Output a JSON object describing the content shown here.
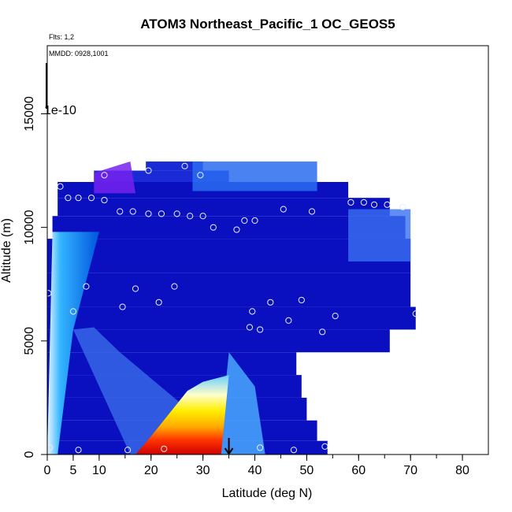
{
  "chart_data": {
    "type": "heatmap",
    "title": "ATOM3 Northeast_Pacific_1 OC_GEOS5",
    "annotations": {
      "flights": "Flts: 1,2",
      "dates": "MMDD: 0928,1001",
      "scale_label": "1e-10"
    },
    "xlabel": "Latitude (deg N)",
    "ylabel": "Altitude (m)",
    "xlim": [
      0,
      85
    ],
    "ylim": [
      0,
      18000
    ],
    "x_ticks": [
      0,
      5,
      10,
      20,
      30,
      40,
      50,
      60,
      70,
      80
    ],
    "x_tick_labels": [
      "0",
      "5",
      "10",
      "20",
      "30",
      "40",
      "50",
      "60",
      "70",
      "80"
    ],
    "y_ticks": [
      0,
      5000,
      10000,
      15000
    ],
    "y_tick_labels": [
      "0",
      "5000",
      "10000",
      "15000"
    ],
    "grid": false,
    "marker_latitude": 35,
    "colors": {
      "low": "#0000aa",
      "mid": "#3399ff",
      "high_yellow": "#ffee00",
      "peak": "#cc0000"
    },
    "sample_points": [
      {
        "lat": 0.5,
        "alt": 300
      },
      {
        "lat": 6,
        "alt": 200
      },
      {
        "lat": 15.5,
        "alt": 200
      },
      {
        "lat": 22.5,
        "alt": 250
      },
      {
        "lat": 41,
        "alt": 300
      },
      {
        "lat": 47.5,
        "alt": 200
      },
      {
        "lat": 53.5,
        "alt": 350
      },
      {
        "lat": 0.2,
        "alt": 7100
      },
      {
        "lat": 5,
        "alt": 6300
      },
      {
        "lat": 7.5,
        "alt": 7400
      },
      {
        "lat": 14.5,
        "alt": 6500
      },
      {
        "lat": 17,
        "alt": 7300
      },
      {
        "lat": 21.5,
        "alt": 6700
      },
      {
        "lat": 24.5,
        "alt": 7400
      },
      {
        "lat": 39,
        "alt": 5600
      },
      {
        "lat": 39.5,
        "alt": 6300
      },
      {
        "lat": 41,
        "alt": 5500
      },
      {
        "lat": 43,
        "alt": 6700
      },
      {
        "lat": 46.5,
        "alt": 5900
      },
      {
        "lat": 49,
        "alt": 6800
      },
      {
        "lat": 53,
        "alt": 5400
      },
      {
        "lat": 55.5,
        "alt": 6100
      },
      {
        "lat": 71,
        "alt": 6200
      },
      {
        "lat": 2.5,
        "alt": 11800
      },
      {
        "lat": 4,
        "alt": 11300
      },
      {
        "lat": 6,
        "alt": 11300
      },
      {
        "lat": 8.5,
        "alt": 11300
      },
      {
        "lat": 11,
        "alt": 11200
      },
      {
        "lat": 11,
        "alt": 12300
      },
      {
        "lat": 19.5,
        "alt": 12500
      },
      {
        "lat": 26.5,
        "alt": 12700
      },
      {
        "lat": 29.5,
        "alt": 12300
      },
      {
        "lat": 14,
        "alt": 10700
      },
      {
        "lat": 16.5,
        "alt": 10700
      },
      {
        "lat": 19.5,
        "alt": 10600
      },
      {
        "lat": 22,
        "alt": 10600
      },
      {
        "lat": 25,
        "alt": 10600
      },
      {
        "lat": 27.5,
        "alt": 10500
      },
      {
        "lat": 30,
        "alt": 10500
      },
      {
        "lat": 32,
        "alt": 10000
      },
      {
        "lat": 36.5,
        "alt": 9900
      },
      {
        "lat": 38,
        "alt": 10300
      },
      {
        "lat": 40,
        "alt": 10300
      },
      {
        "lat": 45.5,
        "alt": 10800
      },
      {
        "lat": 51,
        "alt": 10700
      },
      {
        "lat": 58.5,
        "alt": 11100
      },
      {
        "lat": 61,
        "alt": 11100
      },
      {
        "lat": 63,
        "alt": 11000
      },
      {
        "lat": 65.5,
        "alt": 11000
      },
      {
        "lat": 68.5,
        "alt": 10900
      }
    ]
  }
}
